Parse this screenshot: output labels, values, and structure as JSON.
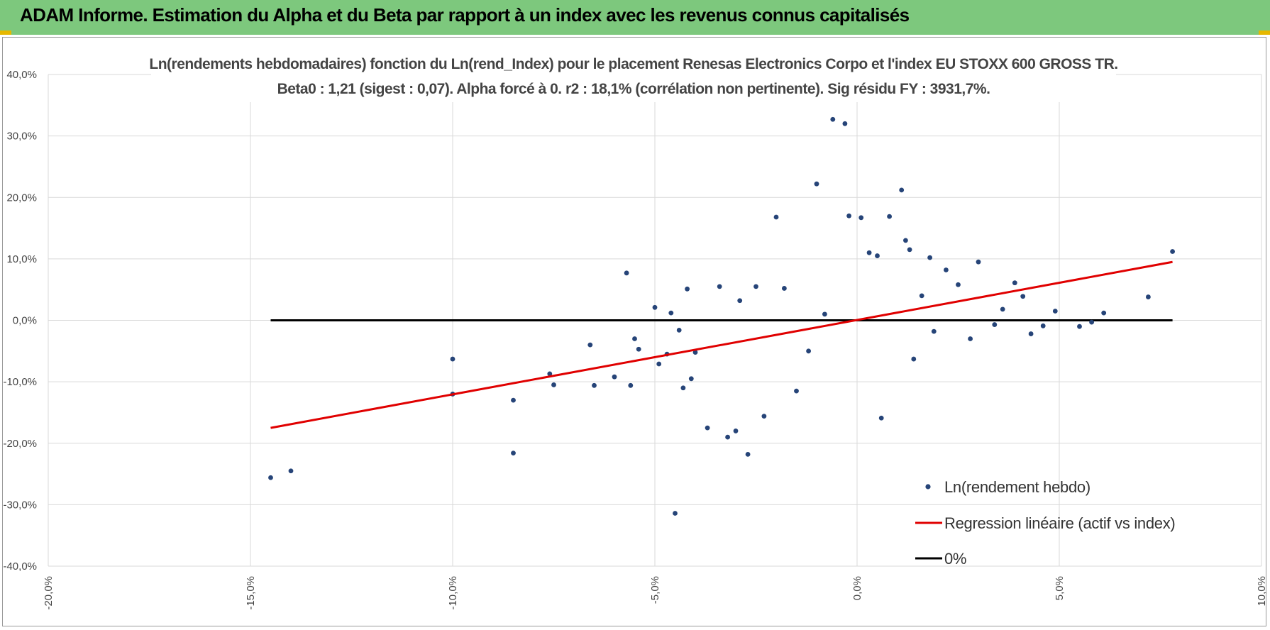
{
  "header": {
    "title": "ADAM Informe. Estimation du Alpha et du Beta par rapport à un index avec les revenus connus capitalisés"
  },
  "colors": {
    "header_bg": "#7dc87d",
    "points": "#264478",
    "regression": "#e00000",
    "zero_line": "#000000",
    "grid": "#d9d9d9"
  },
  "chart_data": {
    "type": "scatter",
    "title": "Ln(rendements hebdomadaires) fonction du Ln(rend_Index) pour le placement Renesas Electronics Corpo et l'index EU STOXX 600 GROSS TR.",
    "subtitle": "Beta0 : 1,21 (sigest : 0,07).  Alpha forcé à 0. r2 : 18,1% (corrélation non pertinente). Sig résidu FY : 3931,7%.",
    "xlabel": "",
    "ylabel": "",
    "xlim": [
      -0.2,
      0.1
    ],
    "ylim": [
      -0.4,
      0.4
    ],
    "x_ticks": [
      "-20,0%",
      "-15,0%",
      "-10,0%",
      "-5,0%",
      "0,0%",
      "5,0%",
      "10,0%"
    ],
    "y_ticks": [
      "40,0%",
      "30,0%",
      "20,0%",
      "10,0%",
      "0,0%",
      "-10,0%",
      "-20,0%",
      "-30,0%",
      "-40,0%"
    ],
    "grid": true,
    "legend_position": "bottom-right",
    "series": [
      {
        "name": "Ln(rendement hebdo)",
        "kind": "points",
        "x": [
          -0.145,
          -0.14,
          -0.1,
          -0.1,
          -0.085,
          -0.085,
          -0.076,
          -0.075,
          -0.066,
          -0.065,
          -0.06,
          -0.057,
          -0.056,
          -0.055,
          -0.054,
          -0.05,
          -0.049,
          -0.047,
          -0.046,
          -0.045,
          -0.044,
          -0.043,
          -0.042,
          -0.041,
          -0.04,
          -0.037,
          -0.034,
          -0.032,
          -0.03,
          -0.029,
          -0.027,
          -0.025,
          -0.023,
          -0.02,
          -0.018,
          -0.015,
          -0.012,
          -0.01,
          -0.008,
          -0.006,
          -0.003,
          -0.002,
          0.001,
          0.003,
          0.005,
          0.006,
          0.008,
          0.011,
          0.012,
          0.013,
          0.014,
          0.016,
          0.018,
          0.019,
          0.022,
          0.025,
          0.028,
          0.03,
          0.034,
          0.036,
          0.039,
          0.041,
          0.043,
          0.046,
          0.049,
          0.055,
          0.058,
          0.061,
          0.072,
          0.078
        ],
        "y": [
          -0.256,
          -0.245,
          -0.12,
          -0.063,
          -0.216,
          -0.13,
          -0.087,
          -0.105,
          -0.04,
          -0.106,
          -0.092,
          0.077,
          -0.106,
          -0.03,
          -0.047,
          0.021,
          -0.071,
          -0.055,
          0.012,
          -0.314,
          -0.016,
          -0.11,
          0.051,
          -0.095,
          -0.052,
          -0.175,
          0.055,
          -0.19,
          -0.18,
          0.032,
          -0.218,
          0.055,
          -0.156,
          0.168,
          0.052,
          -0.115,
          -0.05,
          0.222,
          0.01,
          0.327,
          0.32,
          0.17,
          0.167,
          0.11,
          0.105,
          -0.159,
          0.169,
          0.212,
          0.13,
          0.115,
          -0.063,
          0.04,
          0.102,
          -0.018,
          0.082,
          0.058,
          -0.03,
          0.095,
          -0.007,
          0.018,
          0.061,
          0.039,
          -0.022,
          -0.009,
          0.015,
          -0.01,
          -0.003,
          0.012,
          0.038,
          0.112
        ]
      },
      {
        "name": "Regression linéaire (actif vs index)",
        "kind": "line",
        "x": [
          -0.145,
          0.078
        ],
        "y": [
          -0.175,
          0.095
        ]
      },
      {
        "name": "0%",
        "kind": "line",
        "x": [
          -0.145,
          0.078
        ],
        "y": [
          0,
          0
        ]
      }
    ]
  }
}
